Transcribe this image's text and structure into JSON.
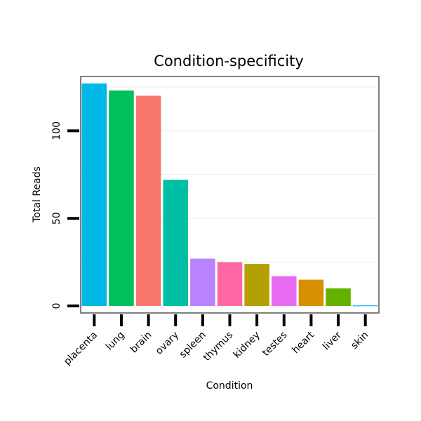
{
  "chart_data": {
    "type": "bar",
    "title": "Condition-specificity",
    "xlabel": "Condition",
    "ylabel": "Total Reads",
    "categories": [
      "placenta",
      "lung",
      "brain",
      "ovary",
      "spleen",
      "thymus",
      "kidney",
      "testes",
      "heart",
      "liver",
      "skin"
    ],
    "values": [
      127,
      123,
      120,
      72,
      27,
      25,
      24,
      17,
      15,
      10,
      0.3
    ],
    "colors": [
      "#00B8E5",
      "#00C05A",
      "#F8766D",
      "#00BFA4",
      "#B983FF",
      "#FF67A4",
      "#B2A100",
      "#E76BF3",
      "#D89000",
      "#64B200",
      "#00A5FF"
    ],
    "yticks": [
      0,
      50,
      100
    ],
    "ylim": [
      -4,
      131
    ],
    "grid": true,
    "legend": "none"
  }
}
